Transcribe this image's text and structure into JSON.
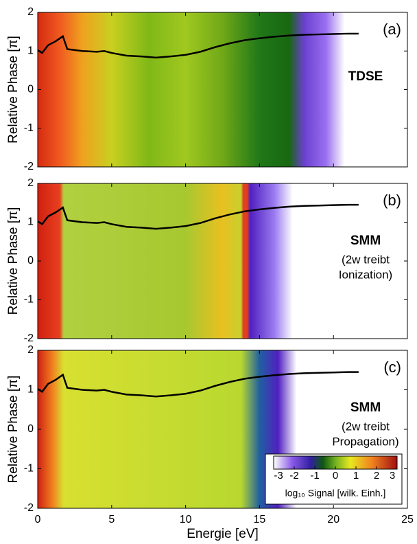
{
  "chart_data": [
    {
      "type": "line",
      "label": "(a)",
      "method": "TDSE",
      "ylabel": "Relative Phase [π]",
      "xlim": [
        0,
        25
      ],
      "xticks": [
        0,
        5,
        10,
        15,
        20,
        25
      ],
      "ylim": [
        -2,
        2
      ],
      "yticks": [
        -2,
        -1,
        0,
        1,
        2
      ],
      "x": [
        0,
        0.3,
        0.7,
        1.2,
        1.7,
        2.0,
        3,
        4,
        4.5,
        5,
        6,
        7,
        8,
        9,
        10,
        11,
        12,
        13,
        14,
        15,
        16,
        17,
        18,
        19,
        20,
        21,
        21.7
      ],
      "values": [
        1.02,
        0.95,
        1.15,
        1.25,
        1.38,
        1.05,
        1.0,
        0.98,
        1.0,
        0.95,
        0.88,
        0.86,
        0.83,
        0.86,
        0.9,
        0.98,
        1.1,
        1.2,
        1.28,
        1.33,
        1.37,
        1.4,
        1.42,
        1.43,
        1.44,
        1.45,
        1.45
      ],
      "color": "#000000"
    },
    {
      "type": "line",
      "label": "(b)",
      "method": "SMM",
      "note": [
        "(2w treibt",
        "Ionization)"
      ],
      "ylabel": "Relative Phase [π]",
      "xlim": [
        0,
        25
      ],
      "xticks": [
        0,
        5,
        10,
        15,
        20,
        25
      ],
      "ylim": [
        -2,
        2
      ],
      "yticks": [
        -2,
        -1,
        0,
        1,
        2
      ],
      "x": [
        0,
        0.3,
        0.7,
        1.2,
        1.7,
        2.0,
        3,
        4,
        4.5,
        5,
        6,
        7,
        8,
        9,
        10,
        11,
        12,
        13,
        14,
        15,
        16,
        17,
        18,
        19,
        20,
        21,
        21.7
      ],
      "values": [
        1.02,
        0.95,
        1.15,
        1.25,
        1.38,
        1.05,
        1.0,
        0.98,
        1.0,
        0.95,
        0.88,
        0.86,
        0.83,
        0.86,
        0.9,
        0.98,
        1.1,
        1.2,
        1.28,
        1.33,
        1.37,
        1.4,
        1.42,
        1.43,
        1.44,
        1.45,
        1.45
      ],
      "color": "#000000"
    },
    {
      "type": "line",
      "label": "(c)",
      "method": "SMM",
      "note": [
        "(2w treibt",
        "Propagation)"
      ],
      "ylabel": "Relative Phase [π]",
      "xlabel": "Energie [eV]",
      "xlim": [
        0,
        25
      ],
      "xticks": [
        0,
        5,
        10,
        15,
        20,
        25
      ],
      "ylim": [
        -2,
        2
      ],
      "yticks": [
        -2,
        -1,
        0,
        1,
        2
      ],
      "x": [
        0,
        0.3,
        0.7,
        1.2,
        1.7,
        2.0,
        3,
        4,
        4.5,
        5,
        6,
        7,
        8,
        9,
        10,
        11,
        12,
        13,
        14,
        15,
        16,
        17,
        18,
        19,
        20,
        21,
        21.7
      ],
      "values": [
        1.02,
        0.95,
        1.15,
        1.25,
        1.38,
        1.05,
        1.0,
        0.98,
        1.0,
        0.95,
        0.88,
        0.86,
        0.83,
        0.86,
        0.9,
        0.98,
        1.1,
        1.2,
        1.28,
        1.33,
        1.37,
        1.4,
        1.42,
        1.43,
        1.44,
        1.45,
        1.45
      ],
      "color": "#000000",
      "colorbar": {
        "lim": [
          -3,
          3
        ],
        "ticks": [
          -3,
          -2,
          -1,
          0,
          1,
          2,
          3
        ],
        "label": "log₁₀ Signal [wilk. Einh.]"
      }
    }
  ]
}
